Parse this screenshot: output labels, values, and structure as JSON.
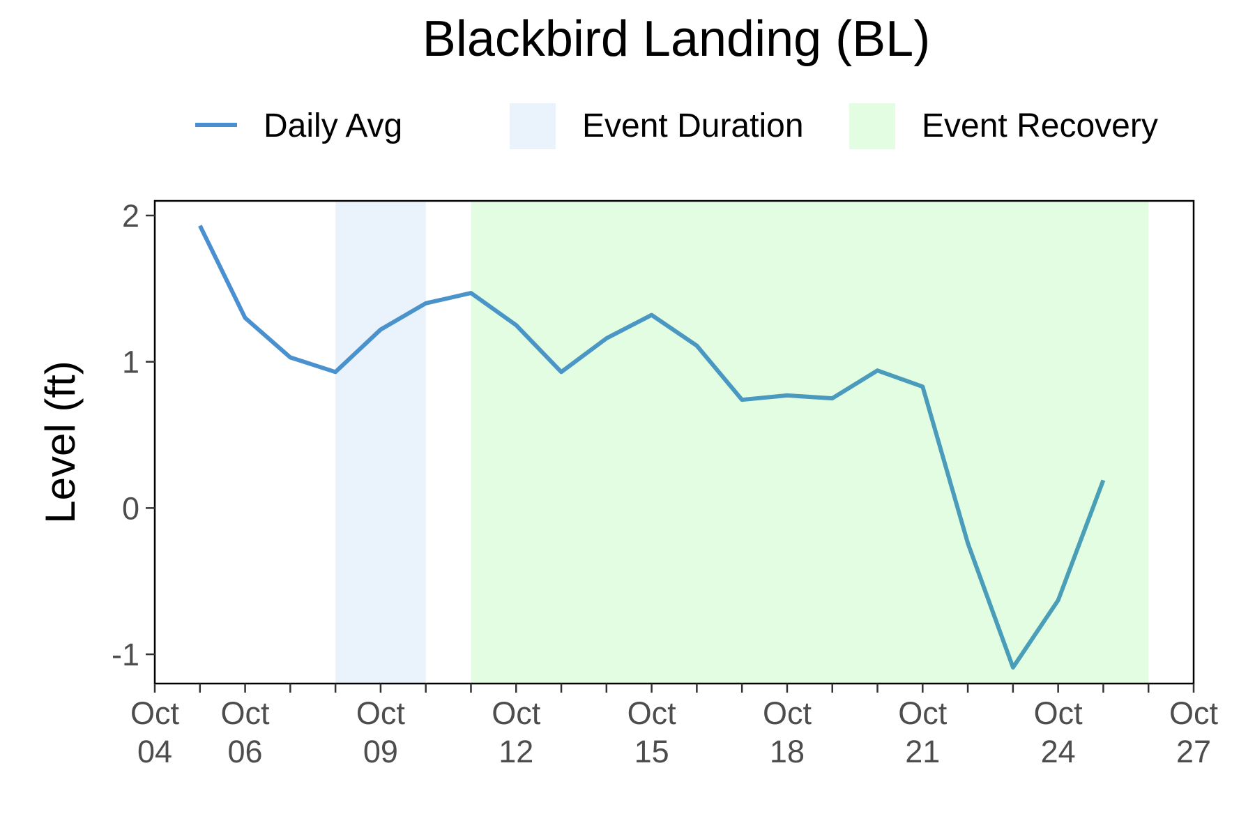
{
  "chart_data": {
    "type": "line",
    "title": "Blackbird Landing (BL)",
    "xlabel": "",
    "ylabel": "Level (ft)",
    "ylim": [
      -1.2,
      2.1
    ],
    "xlim": [
      "Oct 04",
      "Oct 27"
    ],
    "grid": false,
    "legend_position": "top",
    "legend": [
      {
        "label": "Daily Avg",
        "kind": "line",
        "color": "#4a8fd1"
      },
      {
        "label": "Event Duration",
        "kind": "rect",
        "color": "#eaf2fb"
      },
      {
        "label": "Event Recovery",
        "kind": "rect",
        "color": "#e2fde2"
      }
    ],
    "x_ticks": [
      {
        "day": 4,
        "line1": "Oct",
        "line2": "04"
      },
      {
        "day": 6,
        "line1": "Oct",
        "line2": "06"
      },
      {
        "day": 9,
        "line1": "Oct",
        "line2": "09"
      },
      {
        "day": 12,
        "line1": "Oct",
        "line2": "12"
      },
      {
        "day": 15,
        "line1": "Oct",
        "line2": "15"
      },
      {
        "day": 18,
        "line1": "Oct",
        "line2": "18"
      },
      {
        "day": 21,
        "line1": "Oct",
        "line2": "21"
      },
      {
        "day": 24,
        "line1": "Oct",
        "line2": "24"
      },
      {
        "day": 27,
        "line1": "Oct",
        "line2": "27"
      }
    ],
    "y_ticks": [
      2,
      1,
      0,
      -1
    ],
    "y_tick_labels": [
      "2",
      "1",
      "0",
      "-1"
    ],
    "event_duration": {
      "start_day": 8,
      "end_day": 10
    },
    "event_recovery": {
      "start_day": 11,
      "end_day": 26
    },
    "series": [
      {
        "name": "Daily Avg",
        "color_start": "#4a8fd1",
        "color_end": "#4a9fb5",
        "x": [
          5,
          6,
          7,
          8,
          9,
          10,
          11,
          12,
          13,
          14,
          15,
          16,
          17,
          18,
          19,
          20,
          21,
          22,
          23,
          24,
          25
        ],
        "values": [
          1.93,
          1.3,
          1.03,
          0.93,
          1.22,
          1.4,
          1.47,
          1.25,
          0.93,
          1.16,
          1.32,
          1.11,
          0.74,
          0.77,
          0.75,
          0.94,
          0.83,
          -0.24,
          -1.09,
          -0.63,
          0.19
        ]
      }
    ]
  }
}
